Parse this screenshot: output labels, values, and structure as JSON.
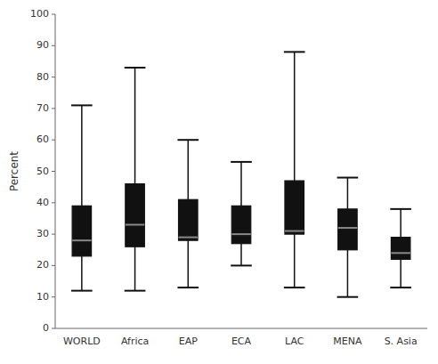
{
  "chart_data": {
    "type": "box",
    "categories": [
      "WORLD",
      "Africa",
      "EAP",
      "ECA",
      "LAC",
      "MENA",
      "S. Asia"
    ],
    "values": [
      {
        "whislo": 12,
        "q1": 23,
        "med": 28,
        "q3": 39,
        "whishi": 71
      },
      {
        "whislo": 12,
        "q1": 26,
        "med": 33,
        "q3": 46,
        "whishi": 83
      },
      {
        "whislo": 13,
        "q1": 28,
        "med": 29,
        "q3": 41,
        "whishi": 60
      },
      {
        "whislo": 20,
        "q1": 27,
        "med": 30,
        "q3": 39,
        "whishi": 53
      },
      {
        "whislo": 13,
        "q1": 30,
        "med": 31,
        "q3": 47,
        "whishi": 88
      },
      {
        "whislo": 10,
        "q1": 25,
        "med": 32,
        "q3": 38,
        "whishi": 48
      },
      {
        "whislo": 13,
        "q1": 22,
        "med": 24,
        "q3": 29,
        "whishi": 38
      }
    ],
    "ylabel": "Percent",
    "ylim": [
      0,
      100
    ],
    "yticks": [
      0,
      10,
      20,
      30,
      40,
      50,
      60,
      70,
      80,
      90,
      100
    ],
    "color": "#111111",
    "grid": false
  }
}
